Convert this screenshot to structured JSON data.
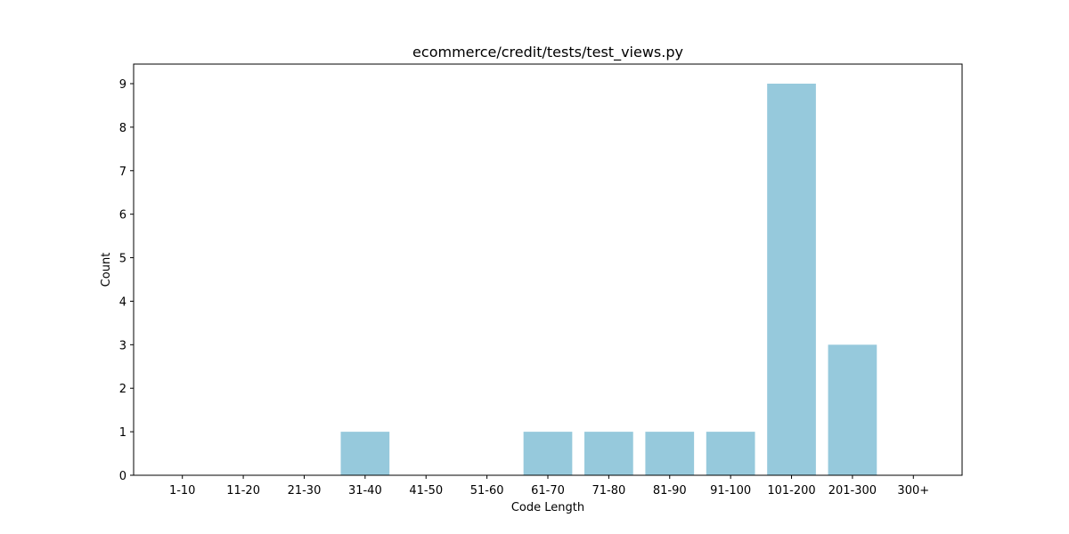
{
  "chart_data": {
    "type": "bar",
    "title": "ecommerce/credit/tests/test_views.py",
    "xlabel": "Code Length",
    "ylabel": "Count",
    "categories": [
      "1-10",
      "11-20",
      "21-30",
      "31-40",
      "41-50",
      "51-60",
      "61-70",
      "71-80",
      "81-90",
      "91-100",
      "101-200",
      "201-300",
      "300+"
    ],
    "values": [
      0,
      0,
      0,
      1,
      0,
      0,
      1,
      1,
      1,
      1,
      9,
      3,
      0
    ],
    "yticks": [
      0,
      1,
      2,
      3,
      4,
      5,
      6,
      7,
      8,
      9
    ],
    "ylim": [
      0,
      9.45
    ],
    "grid": false,
    "bar_color": "#96c9dc"
  }
}
